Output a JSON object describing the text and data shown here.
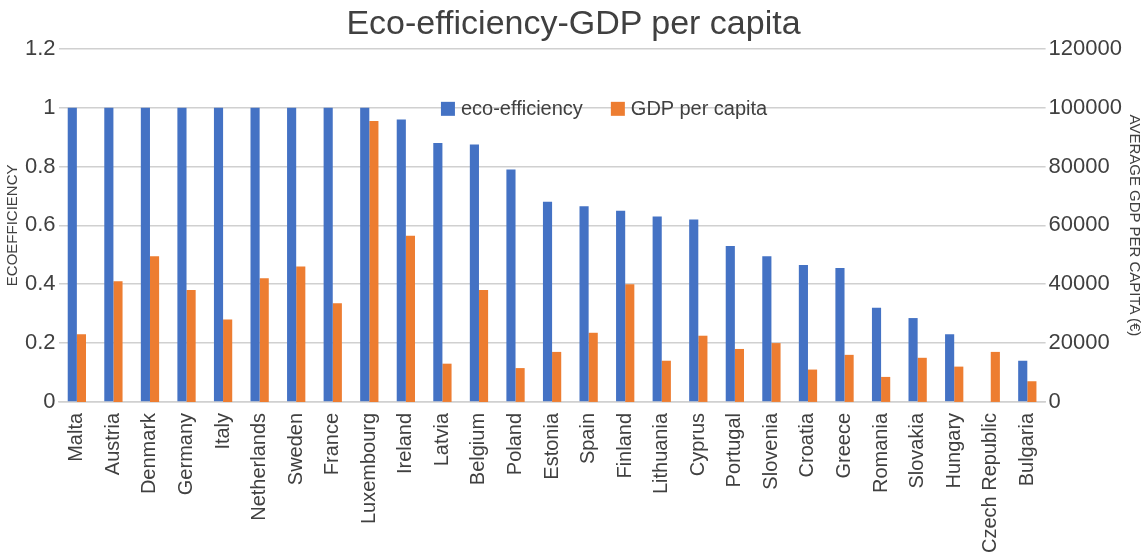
{
  "chart_data": {
    "type": "bar",
    "title": "Eco-efficiency-GDP per capita",
    "ylabel": "ECOEFFICIENCY",
    "y2label": "AVERAGE GDP PER CAPITA (€)",
    "categories": [
      "Malta",
      "Austria",
      "Denmark",
      "Germany",
      "Italy",
      "Netherlands",
      "Sweden",
      "France",
      "Luxembourg",
      "Ireland",
      "Latvia",
      "Belgium",
      "Poland",
      "Estonia",
      "Spain",
      "Finland",
      "Lithuania",
      "Cyprus",
      "Portugal",
      "Slovenia",
      "Croatia",
      "Greece",
      "Romania",
      "Slovakia",
      "Hungary",
      "Czech Republic",
      "Bulgaria"
    ],
    "series": [
      {
        "name": "eco-efficiency",
        "color": "#4472c4",
        "values": [
          1,
          1,
          1,
          1,
          1,
          1,
          1,
          1,
          1,
          0.96,
          0.88,
          0.875,
          0.79,
          0.68,
          0.665,
          0.65,
          0.63,
          0.62,
          0.53,
          0.495,
          0.465,
          0.455,
          0.32,
          0.285,
          0.23,
          0,
          0.14
        ]
      },
      {
        "name": "GDP per capita",
        "color": "#ed7d31",
        "axis": "y2",
        "values": [
          23000,
          41000,
          49500,
          38000,
          28000,
          42000,
          46000,
          33500,
          95500,
          56500,
          13000,
          38000,
          11500,
          17000,
          23500,
          40000,
          14000,
          22500,
          18000,
          20000,
          11000,
          16000,
          8500,
          15000,
          12000,
          17000,
          7000
        ]
      }
    ],
    "ylim": [
      0,
      1.2
    ],
    "yticks": [
      0,
      0.2,
      0.4,
      0.6,
      0.8,
      1,
      1.2
    ],
    "y2lim": [
      0,
      120000
    ],
    "y2ticks": [
      0,
      20000,
      40000,
      60000,
      80000,
      100000,
      120000
    ],
    "grid": "y",
    "legend": "top right"
  }
}
